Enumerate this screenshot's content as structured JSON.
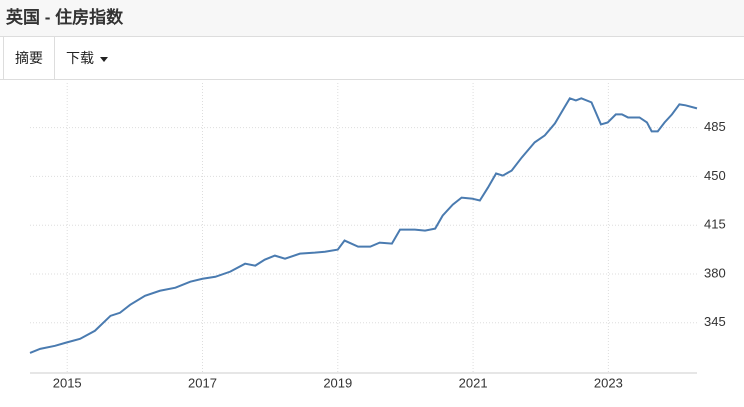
{
  "header": {
    "title": "英国 - 住房指数"
  },
  "tabs": [
    "摘要",
    "下载"
  ],
  "chart_data": {
    "type": "line",
    "x": [
      2014.45,
      2014.6,
      2014.82,
      2014.97,
      2015.19,
      2015.41,
      2015.64,
      2015.78,
      2015.93,
      2016.15,
      2016.37,
      2016.6,
      2016.82,
      2017.0,
      2017.19,
      2017.41,
      2017.63,
      2017.78,
      2017.92,
      2018.07,
      2018.22,
      2018.44,
      2018.66,
      2018.81,
      2019.0,
      2019.1,
      2019.3,
      2019.48,
      2019.62,
      2019.8,
      2019.92,
      2020.14,
      2020.29,
      2020.44,
      2020.55,
      2020.7,
      2020.83,
      2020.98,
      2021.1,
      2021.22,
      2021.34,
      2021.44,
      2021.57,
      2021.72,
      2021.91,
      2022.06,
      2022.21,
      2022.35,
      2022.43,
      2022.52,
      2022.6,
      2022.75,
      2022.89,
      2022.99,
      2023.11,
      2023.2,
      2023.29,
      2023.46,
      2023.57,
      2023.64,
      2023.73,
      2023.83,
      2023.94,
      2024.05,
      2024.14,
      2024.31
    ],
    "series": [
      {
        "name": "住房指数",
        "color": "#4a7bb0",
        "values": [
          323.4,
          326.3,
          328.5,
          330.6,
          333.5,
          339.3,
          350,
          352.2,
          357.9,
          364.4,
          368,
          370.2,
          374.5,
          376.6,
          378,
          381.7,
          387.4,
          386,
          390.3,
          393.2,
          391,
          394.6,
          395.3,
          396,
          397.5,
          404,
          399.6,
          399.6,
          402.5,
          401.8,
          411.8,
          411.8,
          411.1,
          412.6,
          421.9,
          429.8,
          434.8,
          434.1,
          432.7,
          442,
          452.1,
          450.6,
          454.2,
          463.6,
          474.4,
          479.4,
          488,
          499.5,
          506,
          504.5,
          506,
          503.1,
          487.3,
          488.7,
          494.5,
          494.5,
          492.3,
          492.3,
          488.7,
          482.3,
          482.3,
          488.7,
          494.5,
          501.7,
          501,
          498.8
        ]
      }
    ],
    "xlim": [
      2014.45,
      2024.31
    ],
    "xticks": [
      2015,
      2017,
      2019,
      2021,
      2023
    ],
    "ylim": [
      309,
      517
    ],
    "yticks": [
      345,
      380,
      415,
      450,
      485
    ],
    "grid": true
  }
}
